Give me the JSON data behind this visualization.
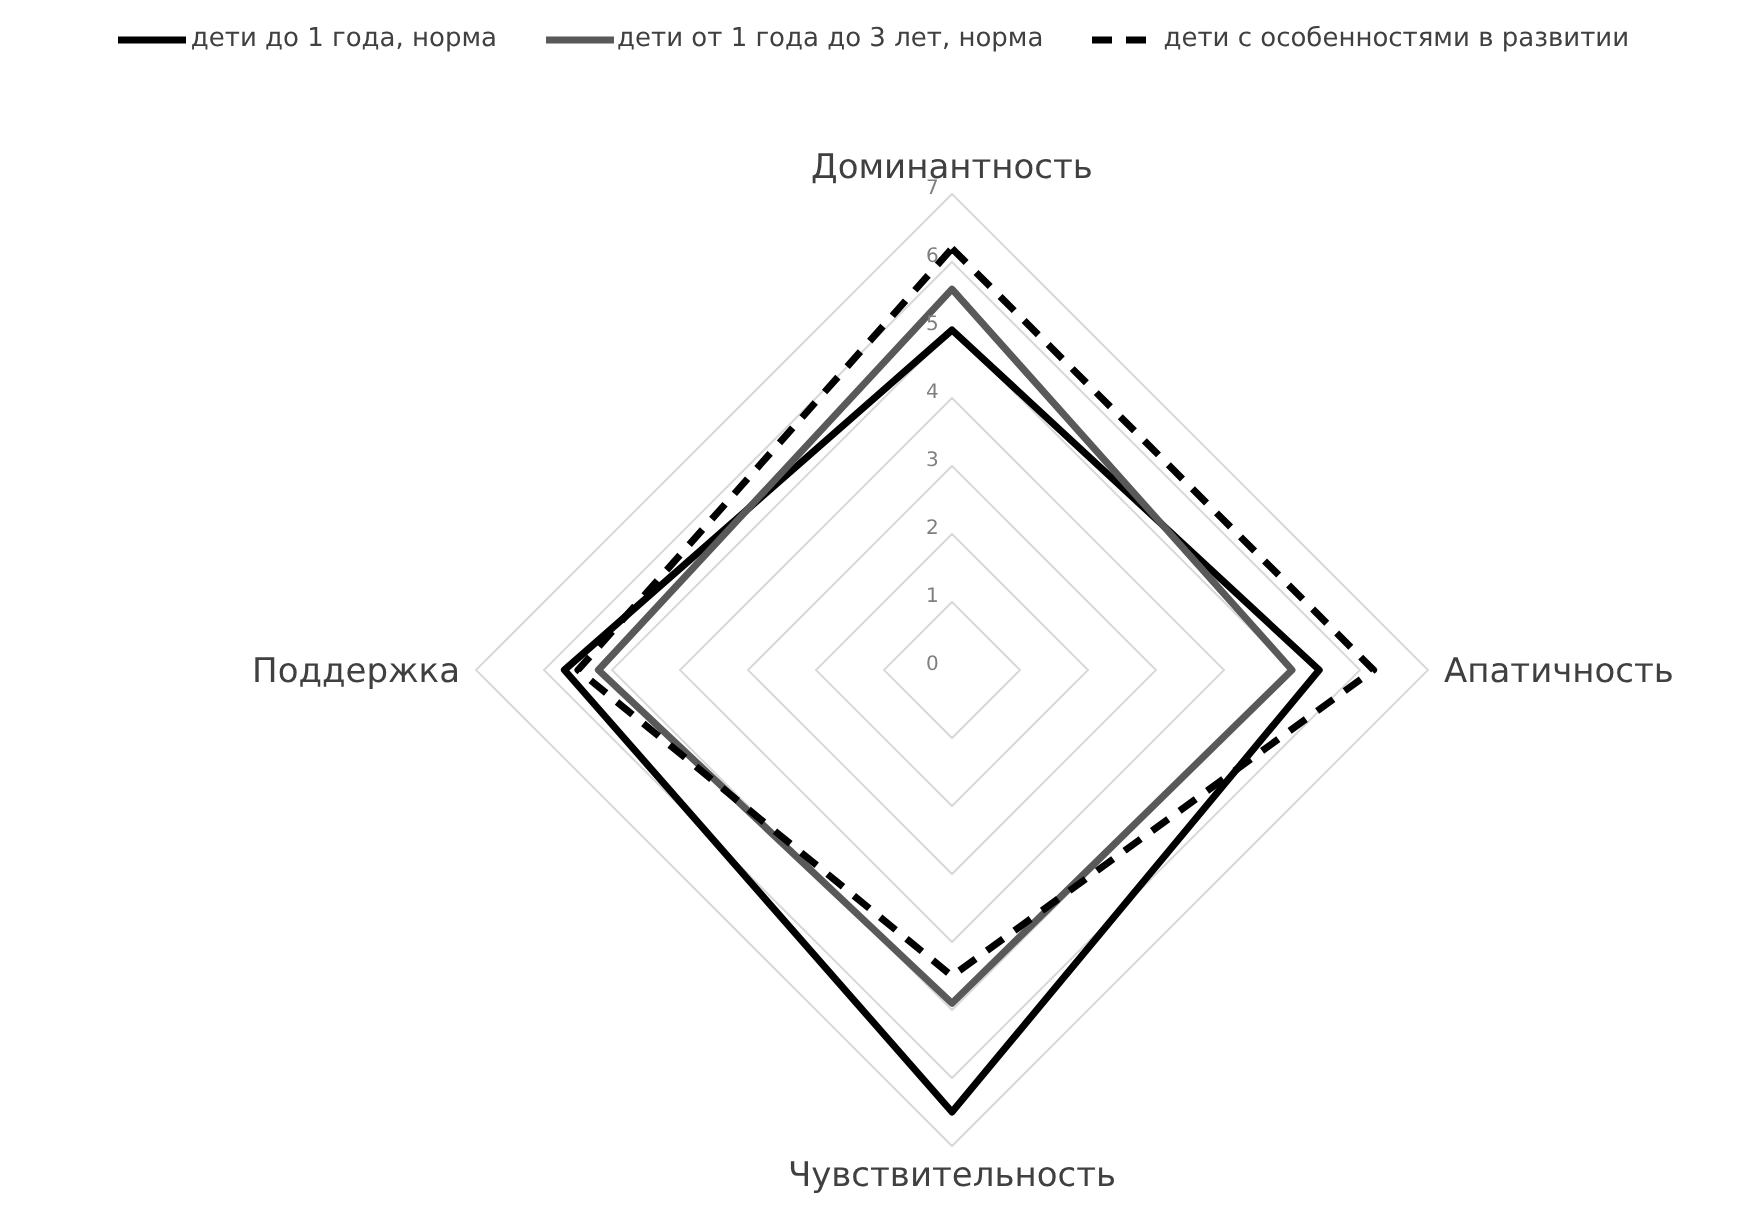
{
  "chart_data": {
    "type": "radar",
    "categories": [
      "Доминантность",
      "Апатичность",
      "Чувствительность",
      "Поддержка"
    ],
    "series": [
      {
        "name": "дети до 1 года, норма",
        "color": "#000000",
        "line_style": "solid",
        "values": [
          5.0,
          5.4,
          6.5,
          5.7
        ]
      },
      {
        "name": "дети от 1 года до 3  лет, норма",
        "color": "#595959",
        "line_style": "solid",
        "values": [
          5.6,
          5.0,
          4.9,
          5.2
        ]
      },
      {
        "name": "дети с особенностями в развитии",
        "color": "#000000",
        "line_style": "dashed",
        "values": [
          6.2,
          6.2,
          4.5,
          5.5
        ]
      }
    ],
    "ylim": [
      0,
      7
    ],
    "yticks": [
      0,
      1,
      2,
      3,
      4,
      5,
      6,
      7
    ],
    "grid": true,
    "legend": "top",
    "marker": "none"
  }
}
